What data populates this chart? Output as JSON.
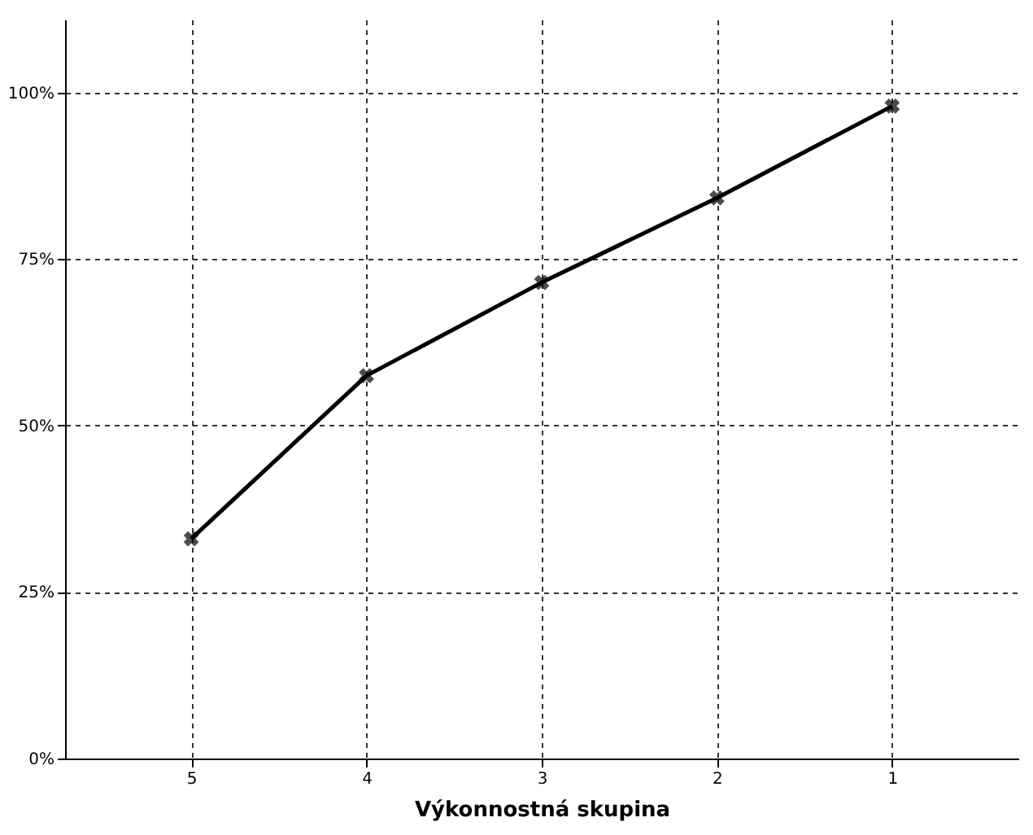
{
  "chart_data": {
    "type": "line",
    "xlabel": "Výkonnostná skupina",
    "categories": [
      "5",
      "4",
      "3",
      "2",
      "1"
    ],
    "values": [
      33,
      57.5,
      71.5,
      84.2,
      98
    ],
    "color": "#000000",
    "marker": "cross",
    "line_style": "solid",
    "grid": true,
    "ylim": [
      0,
      111
    ],
    "yticks": [
      {
        "value": 0,
        "label": "0%"
      },
      {
        "value": 25,
        "label": "25%"
      },
      {
        "value": 50,
        "label": "50%"
      },
      {
        "value": 75,
        "label": "75%"
      },
      {
        "value": 100,
        "label": "100%"
      }
    ]
  }
}
